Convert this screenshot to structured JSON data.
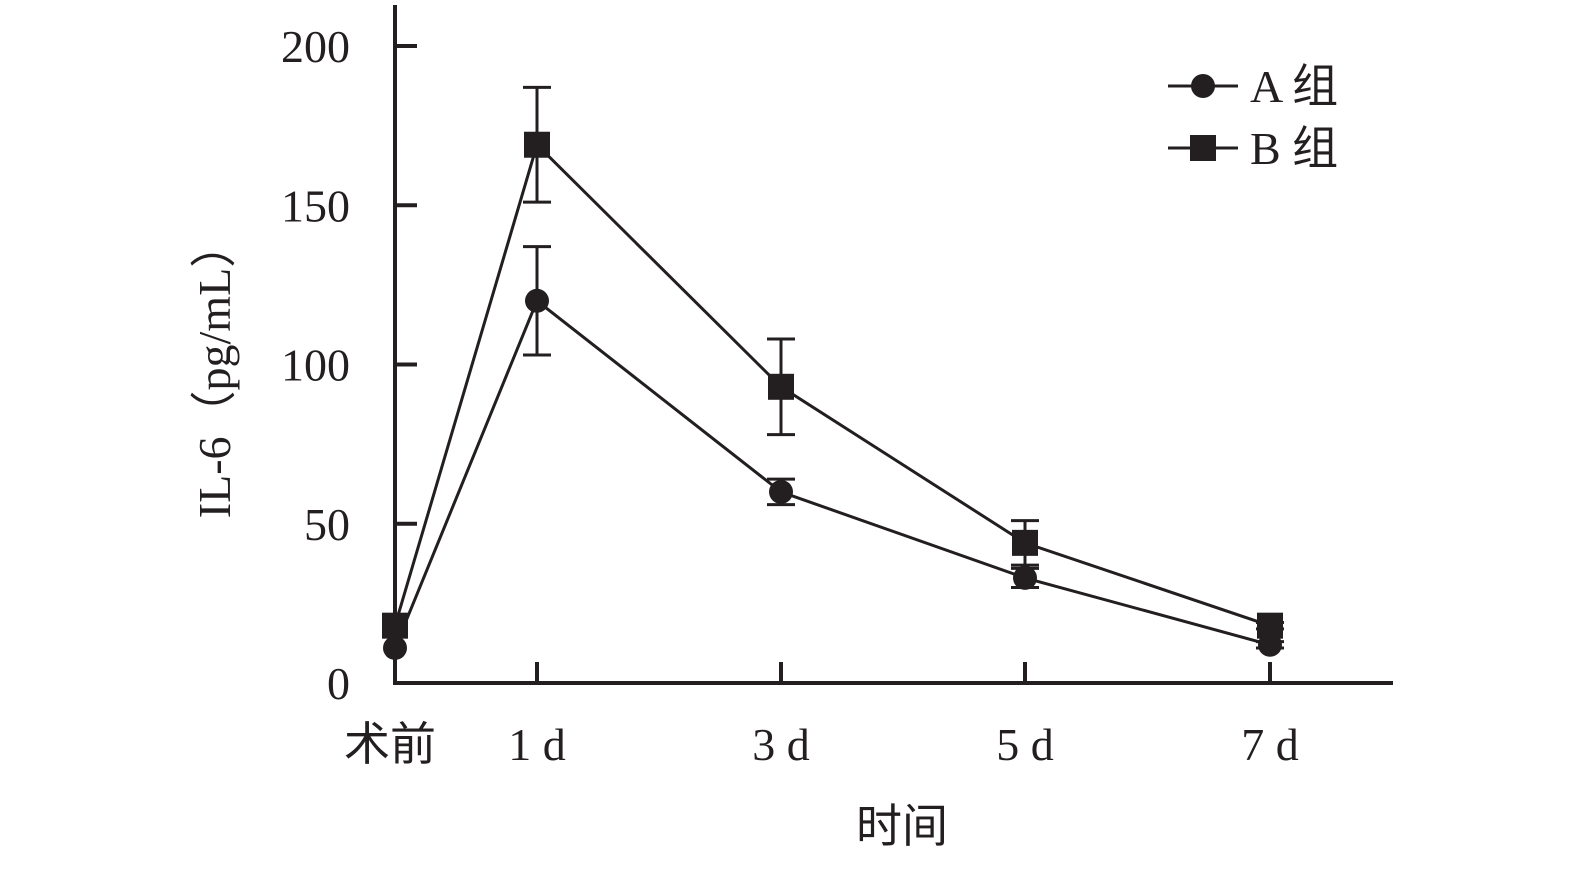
{
  "chart_data": {
    "type": "line",
    "title": "",
    "xlabel": "时间",
    "ylabel": "IL-6（pg/mL）",
    "categories": [
      "术前",
      "1 d",
      "3 d",
      "5 d",
      "7 d"
    ],
    "x": [
      0,
      1,
      3,
      5,
      7
    ],
    "ylim": [
      0,
      200
    ],
    "yticks": [
      0,
      50,
      100,
      150,
      200
    ],
    "grid": false,
    "legend": "top-right",
    "series": [
      {
        "name": "A 组",
        "marker": "circle",
        "values": [
          11,
          120,
          60,
          33,
          12
        ],
        "error": [
          0,
          17,
          4,
          3,
          1
        ]
      },
      {
        "name": "B 组",
        "marker": "square",
        "values": [
          18,
          169,
          93,
          44,
          18
        ],
        "error": [
          0,
          18,
          15,
          7,
          1
        ]
      }
    ],
    "colors": {
      "line": "#231f20",
      "background": "#ffffff"
    }
  }
}
